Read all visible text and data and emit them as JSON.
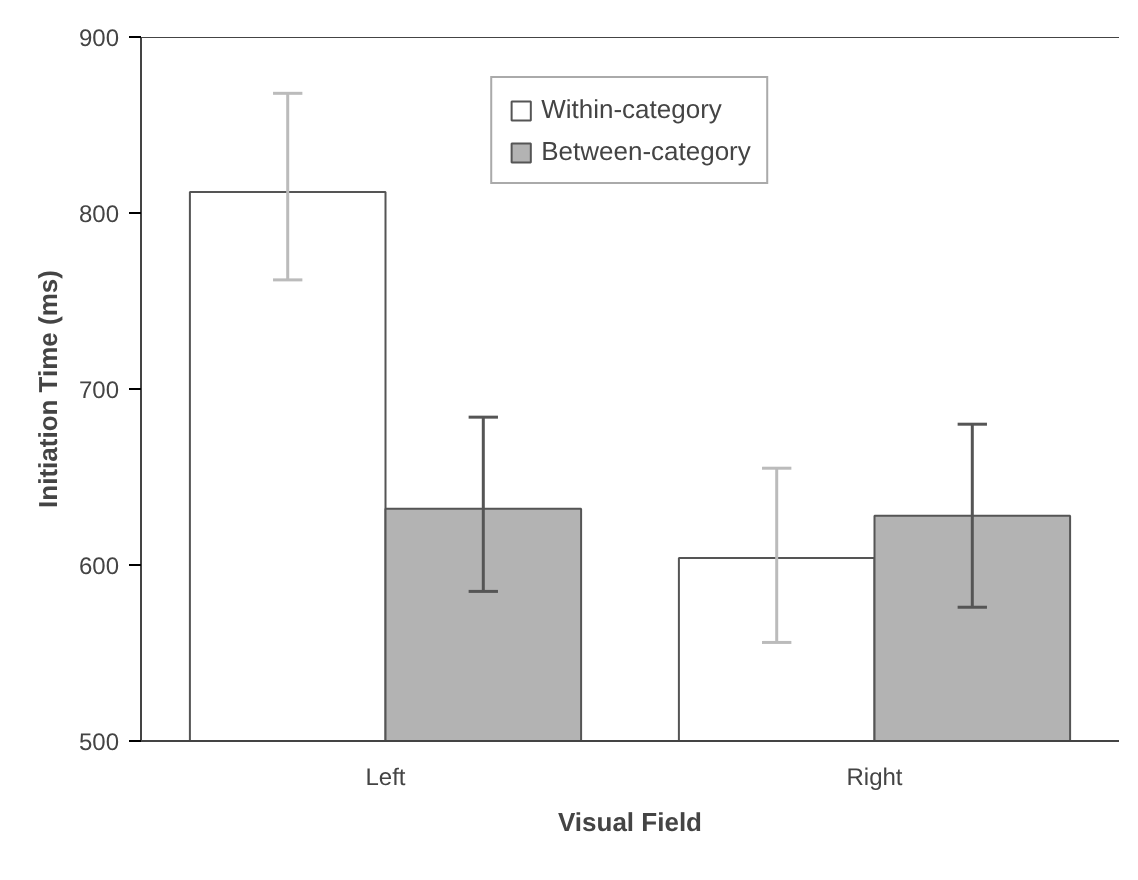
{
  "chart_data": {
    "type": "bar",
    "xlabel": "Visual Field",
    "ylabel": "Initiation Time (ms)",
    "categories": [
      "Left",
      "Right"
    ],
    "series": [
      {
        "name": "Within-category",
        "color": "#ffffff",
        "values": [
          812,
          604
        ],
        "errors": [
          [
            762,
            868
          ],
          [
            556,
            655
          ]
        ]
      },
      {
        "name": "Between-category",
        "color": "#b3b3b3",
        "values": [
          632,
          628
        ],
        "errors": [
          [
            585,
            684
          ],
          [
            576,
            680
          ]
        ]
      }
    ],
    "ylim": [
      500,
      900
    ],
    "yticks": [
      500,
      600,
      700,
      800,
      900
    ],
    "grid": false,
    "legend": "top"
  }
}
